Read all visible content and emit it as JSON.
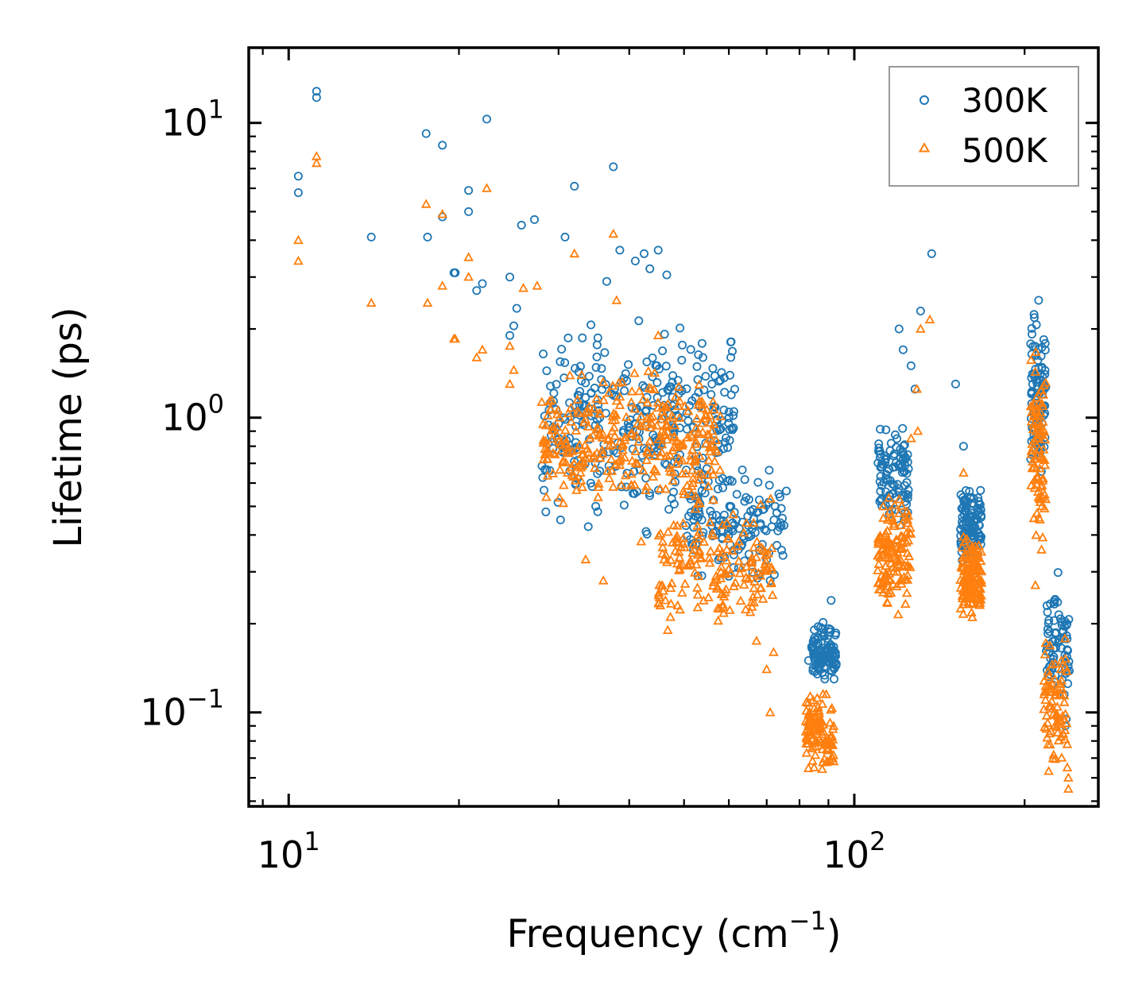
{
  "chart_data": {
    "type": "scatter",
    "title": "",
    "xlabel": "Frequency",
    "xlabel_unit_base": "cm",
    "xlabel_unit_exp": "−1",
    "ylabel": "Lifetime (ps)",
    "xscale": "log",
    "yscale": "log",
    "xlim": [
      8.5,
      270
    ],
    "ylim": [
      0.048,
      18
    ],
    "legend_position": "top-right",
    "x_ticks": [
      {
        "value": 10,
        "base": "10",
        "exp": "1"
      },
      {
        "value": 100,
        "base": "10",
        "exp": "2"
      }
    ],
    "y_ticks": [
      {
        "value": 0.1,
        "base": "10",
        "exp": "−1"
      },
      {
        "value": 1,
        "base": "10",
        "exp": "0"
      },
      {
        "value": 10,
        "base": "10",
        "exp": "1"
      }
    ],
    "series": [
      {
        "name": "300K",
        "marker": "circle",
        "color": "#1f77b4",
        "clusters": [
          {
            "xrange": [
              28,
              62
            ],
            "yrange": [
              0.35,
              2.6
            ],
            "n": 330
          },
          {
            "xrange": [
              50,
              76
            ],
            "yrange": [
              0.25,
              0.75
            ],
            "n": 130
          },
          {
            "xrange": [
              84,
              93
            ],
            "yrange": [
              0.12,
              0.21
            ],
            "n": 110
          },
          {
            "xrange": [
              110,
              125
            ],
            "yrange": [
              0.35,
              1.05
            ],
            "n": 100
          },
          {
            "xrange": [
              154,
              168
            ],
            "yrange": [
              0.28,
              0.65
            ],
            "n": 120
          },
          {
            "xrange": [
              205,
              218
            ],
            "yrange": [
              0.5,
              2.8
            ],
            "n": 90
          },
          {
            "xrange": [
              218,
              240
            ],
            "yrange": [
              0.09,
              0.33
            ],
            "n": 70
          }
        ],
        "points": [
          {
            "x": 10.4,
            "y": 6.6
          },
          {
            "x": 10.4,
            "y": 5.8
          },
          {
            "x": 11.2,
            "y": 12.8
          },
          {
            "x": 11.2,
            "y": 12.2
          },
          {
            "x": 14.0,
            "y": 4.1
          },
          {
            "x": 17.5,
            "y": 9.2
          },
          {
            "x": 17.6,
            "y": 4.1
          },
          {
            "x": 18.7,
            "y": 8.4
          },
          {
            "x": 18.7,
            "y": 4.8
          },
          {
            "x": 19.6,
            "y": 3.1
          },
          {
            "x": 19.7,
            "y": 3.1
          },
          {
            "x": 20.8,
            "y": 5.9
          },
          {
            "x": 20.8,
            "y": 5.0
          },
          {
            "x": 21.5,
            "y": 2.7
          },
          {
            "x": 22.0,
            "y": 2.85
          },
          {
            "x": 22.4,
            "y": 10.3
          },
          {
            "x": 24.6,
            "y": 3.0
          },
          {
            "x": 24.6,
            "y": 1.9
          },
          {
            "x": 25.0,
            "y": 2.05
          },
          {
            "x": 25.3,
            "y": 2.35
          },
          {
            "x": 25.8,
            "y": 4.5
          },
          {
            "x": 27.2,
            "y": 4.7
          },
          {
            "x": 30.8,
            "y": 4.1
          },
          {
            "x": 32.0,
            "y": 6.1
          },
          {
            "x": 37.5,
            "y": 7.1
          },
          {
            "x": 38.5,
            "y": 3.7
          },
          {
            "x": 42.5,
            "y": 3.6
          },
          {
            "x": 45.0,
            "y": 3.7
          },
          {
            "x": 41.0,
            "y": 3.4
          },
          {
            "x": 43.5,
            "y": 3.2
          },
          {
            "x": 46.6,
            "y": 3.05
          },
          {
            "x": 36.5,
            "y": 2.9
          },
          {
            "x": 54.0,
            "y": 1.6
          },
          {
            "x": 56.0,
            "y": 1.3
          },
          {
            "x": 57.0,
            "y": 0.92
          },
          {
            "x": 62.0,
            "y": 0.55
          },
          {
            "x": 64.0,
            "y": 0.52
          },
          {
            "x": 66.0,
            "y": 0.42
          },
          {
            "x": 70.0,
            "y": 0.33
          },
          {
            "x": 71.0,
            "y": 0.28
          },
          {
            "x": 83.0,
            "y": 0.15
          },
          {
            "x": 86.0,
            "y": 0.135
          },
          {
            "x": 91.0,
            "y": 0.24
          },
          {
            "x": 120.0,
            "y": 2.0
          },
          {
            "x": 122.0,
            "y": 1.7
          },
          {
            "x": 126.0,
            "y": 1.5
          },
          {
            "x": 128.0,
            "y": 1.25
          },
          {
            "x": 131.0,
            "y": 2.3
          },
          {
            "x": 137.0,
            "y": 3.6
          },
          {
            "x": 151.0,
            "y": 1.3
          },
          {
            "x": 156.0,
            "y": 0.8
          },
          {
            "x": 236.0,
            "y": 0.09
          },
          {
            "x": 237.0,
            "y": 0.095
          },
          {
            "x": 235.0,
            "y": 0.115
          }
        ]
      },
      {
        "name": "500K",
        "marker": "triangle",
        "color": "#ff7f0e",
        "clusters": [
          {
            "xrange": [
              28,
              58
            ],
            "yrange": [
              0.42,
              1.7
            ],
            "n": 330
          },
          {
            "xrange": [
              45,
              72
            ],
            "yrange": [
              0.16,
              0.6
            ],
            "n": 180
          },
          {
            "xrange": [
              82,
              92
            ],
            "yrange": [
              0.058,
              0.125
            ],
            "n": 110
          },
          {
            "xrange": [
              110,
              126
            ],
            "yrange": [
              0.2,
              0.62
            ],
            "n": 130
          },
          {
            "xrange": [
              154,
              168
            ],
            "yrange": [
              0.19,
              0.45
            ],
            "n": 140
          },
          {
            "xrange": [
              205,
              218
            ],
            "yrange": [
              0.27,
              1.9
            ],
            "n": 90
          },
          {
            "xrange": [
              216,
              238
            ],
            "yrange": [
              0.055,
              0.2
            ],
            "n": 80
          }
        ],
        "points": [
          {
            "x": 10.4,
            "y": 4.0
          },
          {
            "x": 10.4,
            "y": 3.4
          },
          {
            "x": 11.2,
            "y": 7.7
          },
          {
            "x": 11.2,
            "y": 7.3
          },
          {
            "x": 14.0,
            "y": 2.45
          },
          {
            "x": 17.5,
            "y": 5.3
          },
          {
            "x": 17.6,
            "y": 2.45
          },
          {
            "x": 18.7,
            "y": 4.9
          },
          {
            "x": 18.7,
            "y": 2.8
          },
          {
            "x": 19.6,
            "y": 1.85
          },
          {
            "x": 19.7,
            "y": 1.85
          },
          {
            "x": 20.8,
            "y": 3.5
          },
          {
            "x": 20.8,
            "y": 3.0
          },
          {
            "x": 21.5,
            "y": 1.6
          },
          {
            "x": 22.0,
            "y": 1.7
          },
          {
            "x": 22.4,
            "y": 6.0
          },
          {
            "x": 24.6,
            "y": 1.75
          },
          {
            "x": 24.6,
            "y": 1.3
          },
          {
            "x": 25.0,
            "y": 1.45
          },
          {
            "x": 26.0,
            "y": 2.75
          },
          {
            "x": 27.5,
            "y": 2.8
          },
          {
            "x": 32.0,
            "y": 3.6
          },
          {
            "x": 37.5,
            "y": 4.2
          },
          {
            "x": 38.0,
            "y": 2.5
          },
          {
            "x": 45.0,
            "y": 1.9
          },
          {
            "x": 42.0,
            "y": 0.38
          },
          {
            "x": 36.0,
            "y": 0.28
          },
          {
            "x": 33.5,
            "y": 0.33
          },
          {
            "x": 70.0,
            "y": 0.14
          },
          {
            "x": 72.0,
            "y": 0.16
          },
          {
            "x": 71.0,
            "y": 0.1
          },
          {
            "x": 83.0,
            "y": 0.09
          },
          {
            "x": 131.0,
            "y": 2.0
          },
          {
            "x": 136.0,
            "y": 2.15
          },
          {
            "x": 129.0,
            "y": 1.25
          },
          {
            "x": 126.0,
            "y": 0.85
          },
          {
            "x": 129.5,
            "y": 0.9
          },
          {
            "x": 156.0,
            "y": 0.65
          },
          {
            "x": 209.0,
            "y": 0.27
          },
          {
            "x": 239.0,
            "y": 0.06
          },
          {
            "x": 239.0,
            "y": 0.055
          },
          {
            "x": 238.0,
            "y": 0.065
          }
        ]
      }
    ]
  }
}
